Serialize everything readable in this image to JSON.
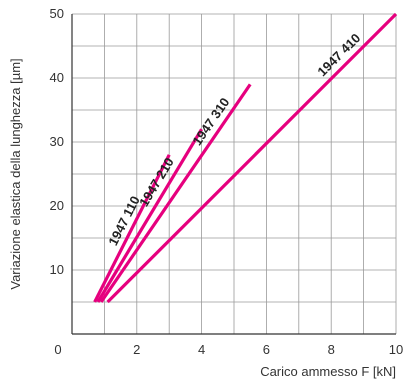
{
  "chart_data": {
    "type": "line",
    "xlabel": "Carico ammesso F [kN]",
    "ylabel": "Variazione elastica della lunghezza  [µm]",
    "xlim": [
      0,
      10
    ],
    "ylim": [
      0,
      50
    ],
    "x_ticks": [
      0,
      2,
      4,
      6,
      8,
      10
    ],
    "y_ticks": [
      10,
      20,
      30,
      40,
      50
    ],
    "x_tick_labels": [
      "0",
      "2",
      "4",
      "6",
      "8",
      "10"
    ],
    "y_tick_labels": [
      "10",
      "20",
      "30",
      "40",
      "50"
    ],
    "grid": true,
    "line_color": "#e6007e",
    "series": [
      {
        "name": "1947 110",
        "x": [
          0.7,
          3.0
        ],
        "y": [
          5,
          28
        ]
      },
      {
        "name": "1947 210",
        "x": [
          0.8,
          4.0
        ],
        "y": [
          5,
          32
        ]
      },
      {
        "name": "1947 310",
        "x": [
          0.9,
          5.5
        ],
        "y": [
          5,
          39
        ]
      },
      {
        "name": "1947 410",
        "x": [
          1.1,
          10.0
        ],
        "y": [
          5,
          50
        ]
      }
    ]
  }
}
